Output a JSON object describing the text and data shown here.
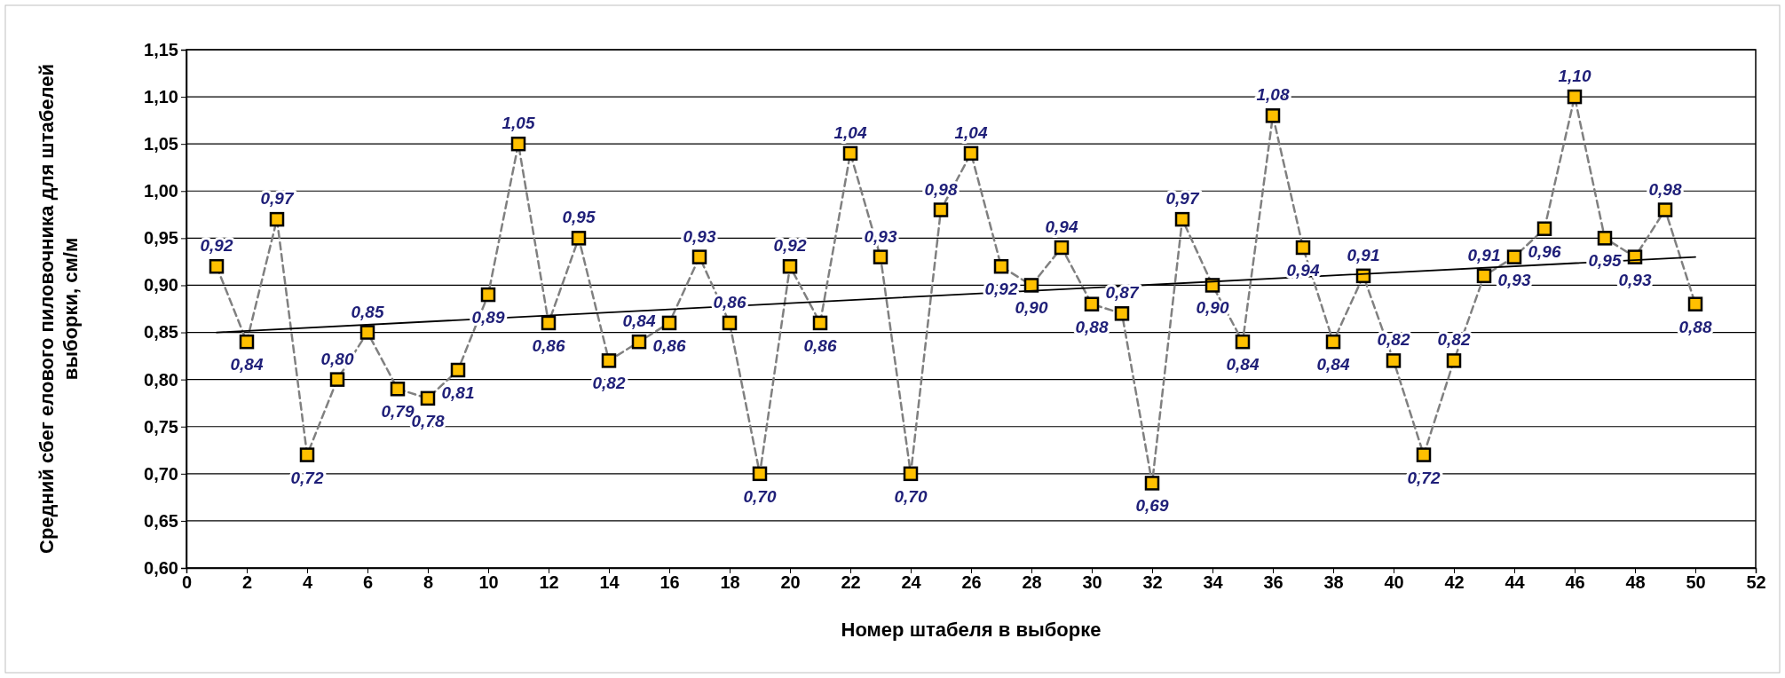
{
  "chart_data": {
    "type": "line",
    "xlabel": "Номер штабеля в выборке",
    "ylabel": "Средний сбег елового пиловочника для штабелей выборки, см/м",
    "x": [
      1,
      2,
      3,
      4,
      5,
      6,
      7,
      8,
      9,
      10,
      11,
      12,
      13,
      14,
      15,
      16,
      17,
      18,
      19,
      20,
      21,
      22,
      23,
      24,
      25,
      26,
      27,
      28,
      29,
      30,
      31,
      32,
      33,
      34,
      35,
      36,
      37,
      38,
      39,
      40,
      41,
      42,
      43,
      44,
      45,
      46,
      47,
      48,
      49,
      50
    ],
    "xlim": [
      0,
      52
    ],
    "xticks": [
      0,
      2,
      4,
      6,
      8,
      10,
      12,
      14,
      16,
      18,
      20,
      22,
      24,
      26,
      28,
      30,
      32,
      34,
      36,
      38,
      40,
      42,
      44,
      46,
      48,
      50,
      52
    ],
    "ylim": [
      0.6,
      1.15
    ],
    "yticks": [
      {
        "value": 0.6,
        "label": "0,60"
      },
      {
        "value": 0.65,
        "label": "0,65"
      },
      {
        "value": 0.7,
        "label": "0,70"
      },
      {
        "value": 0.75,
        "label": "0,75"
      },
      {
        "value": 0.8,
        "label": "0,80"
      },
      {
        "value": 0.85,
        "label": "0,85"
      },
      {
        "value": 0.9,
        "label": "0,90"
      },
      {
        "value": 0.95,
        "label": "0,95"
      },
      {
        "value": 1.0,
        "label": "1,00"
      },
      {
        "value": 1.05,
        "label": "1,05"
      },
      {
        "value": 1.1,
        "label": "1,10"
      },
      {
        "value": 1.15,
        "label": "1,15"
      }
    ],
    "grid": "y",
    "series": [
      {
        "color": "#ffc000",
        "line_style": "dashed",
        "marker": "square",
        "values": [
          0.92,
          0.84,
          0.97,
          0.72,
          0.8,
          0.85,
          0.79,
          0.78,
          0.81,
          0.89,
          1.05,
          0.86,
          0.95,
          0.82,
          0.84,
          0.86,
          0.93,
          0.86,
          0.7,
          0.92,
          0.86,
          1.04,
          0.93,
          0.7,
          0.98,
          1.04,
          0.92,
          0.9,
          0.94,
          0.88,
          0.87,
          0.69,
          0.97,
          0.9,
          0.84,
          1.08,
          0.94,
          0.84,
          0.91,
          0.82,
          0.72,
          0.82,
          0.91,
          0.93,
          0.96,
          1.1,
          0.95,
          0.93,
          0.98,
          0.88
        ],
        "value_labels": [
          "0,92",
          "0,84",
          "0,97",
          "0,72",
          "0,80",
          "0,85",
          "0,79",
          "0,78",
          "0,81",
          "0,89",
          "1,05",
          "0,86",
          "0,95",
          "0,82",
          "0,84",
          "0,86",
          "0,93",
          "0,86",
          "0,70",
          "0,92",
          "0,86",
          "1,04",
          "0,93",
          "0,70",
          "0,98",
          "1,04",
          "0,92",
          "0,90",
          "0,94",
          "0,88",
          "0,87",
          "0,69",
          "0,97",
          "0,90",
          "0,84",
          "1,08",
          "0,94",
          "0,84",
          "0,91",
          "0,82",
          "0,72",
          "0,82",
          "0,91",
          "0,93",
          "0,96",
          "1,10",
          "0,95",
          "0,93",
          "0,98",
          "0,88"
        ]
      },
      {
        "color": "#000000",
        "line_style": "solid",
        "marker": "none",
        "x": [
          1,
          50
        ],
        "values": [
          0.85,
          0.93
        ]
      }
    ]
  }
}
